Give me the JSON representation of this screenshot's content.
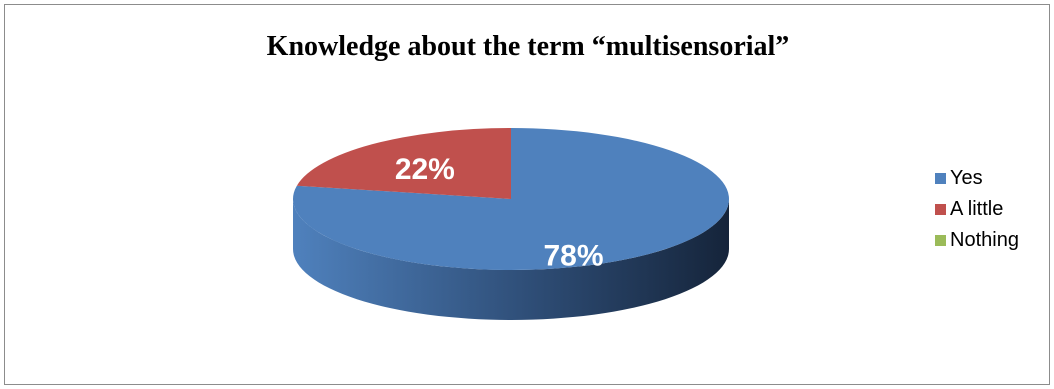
{
  "chart_data": {
    "type": "pie",
    "title": "Knowledge about the term “multisensorial”",
    "categories": [
      "Yes",
      "A little",
      "Nothing"
    ],
    "values": [
      78,
      22,
      0
    ],
    "data_labels": [
      "78%",
      "22%",
      ""
    ],
    "colors": [
      "#4f81bd",
      "#c0504d",
      "#9bbb59"
    ],
    "side_colors": [
      "#2e4d76",
      "#7a2f2d",
      "#5c7433"
    ],
    "legend_position": "right",
    "style": "3d"
  }
}
